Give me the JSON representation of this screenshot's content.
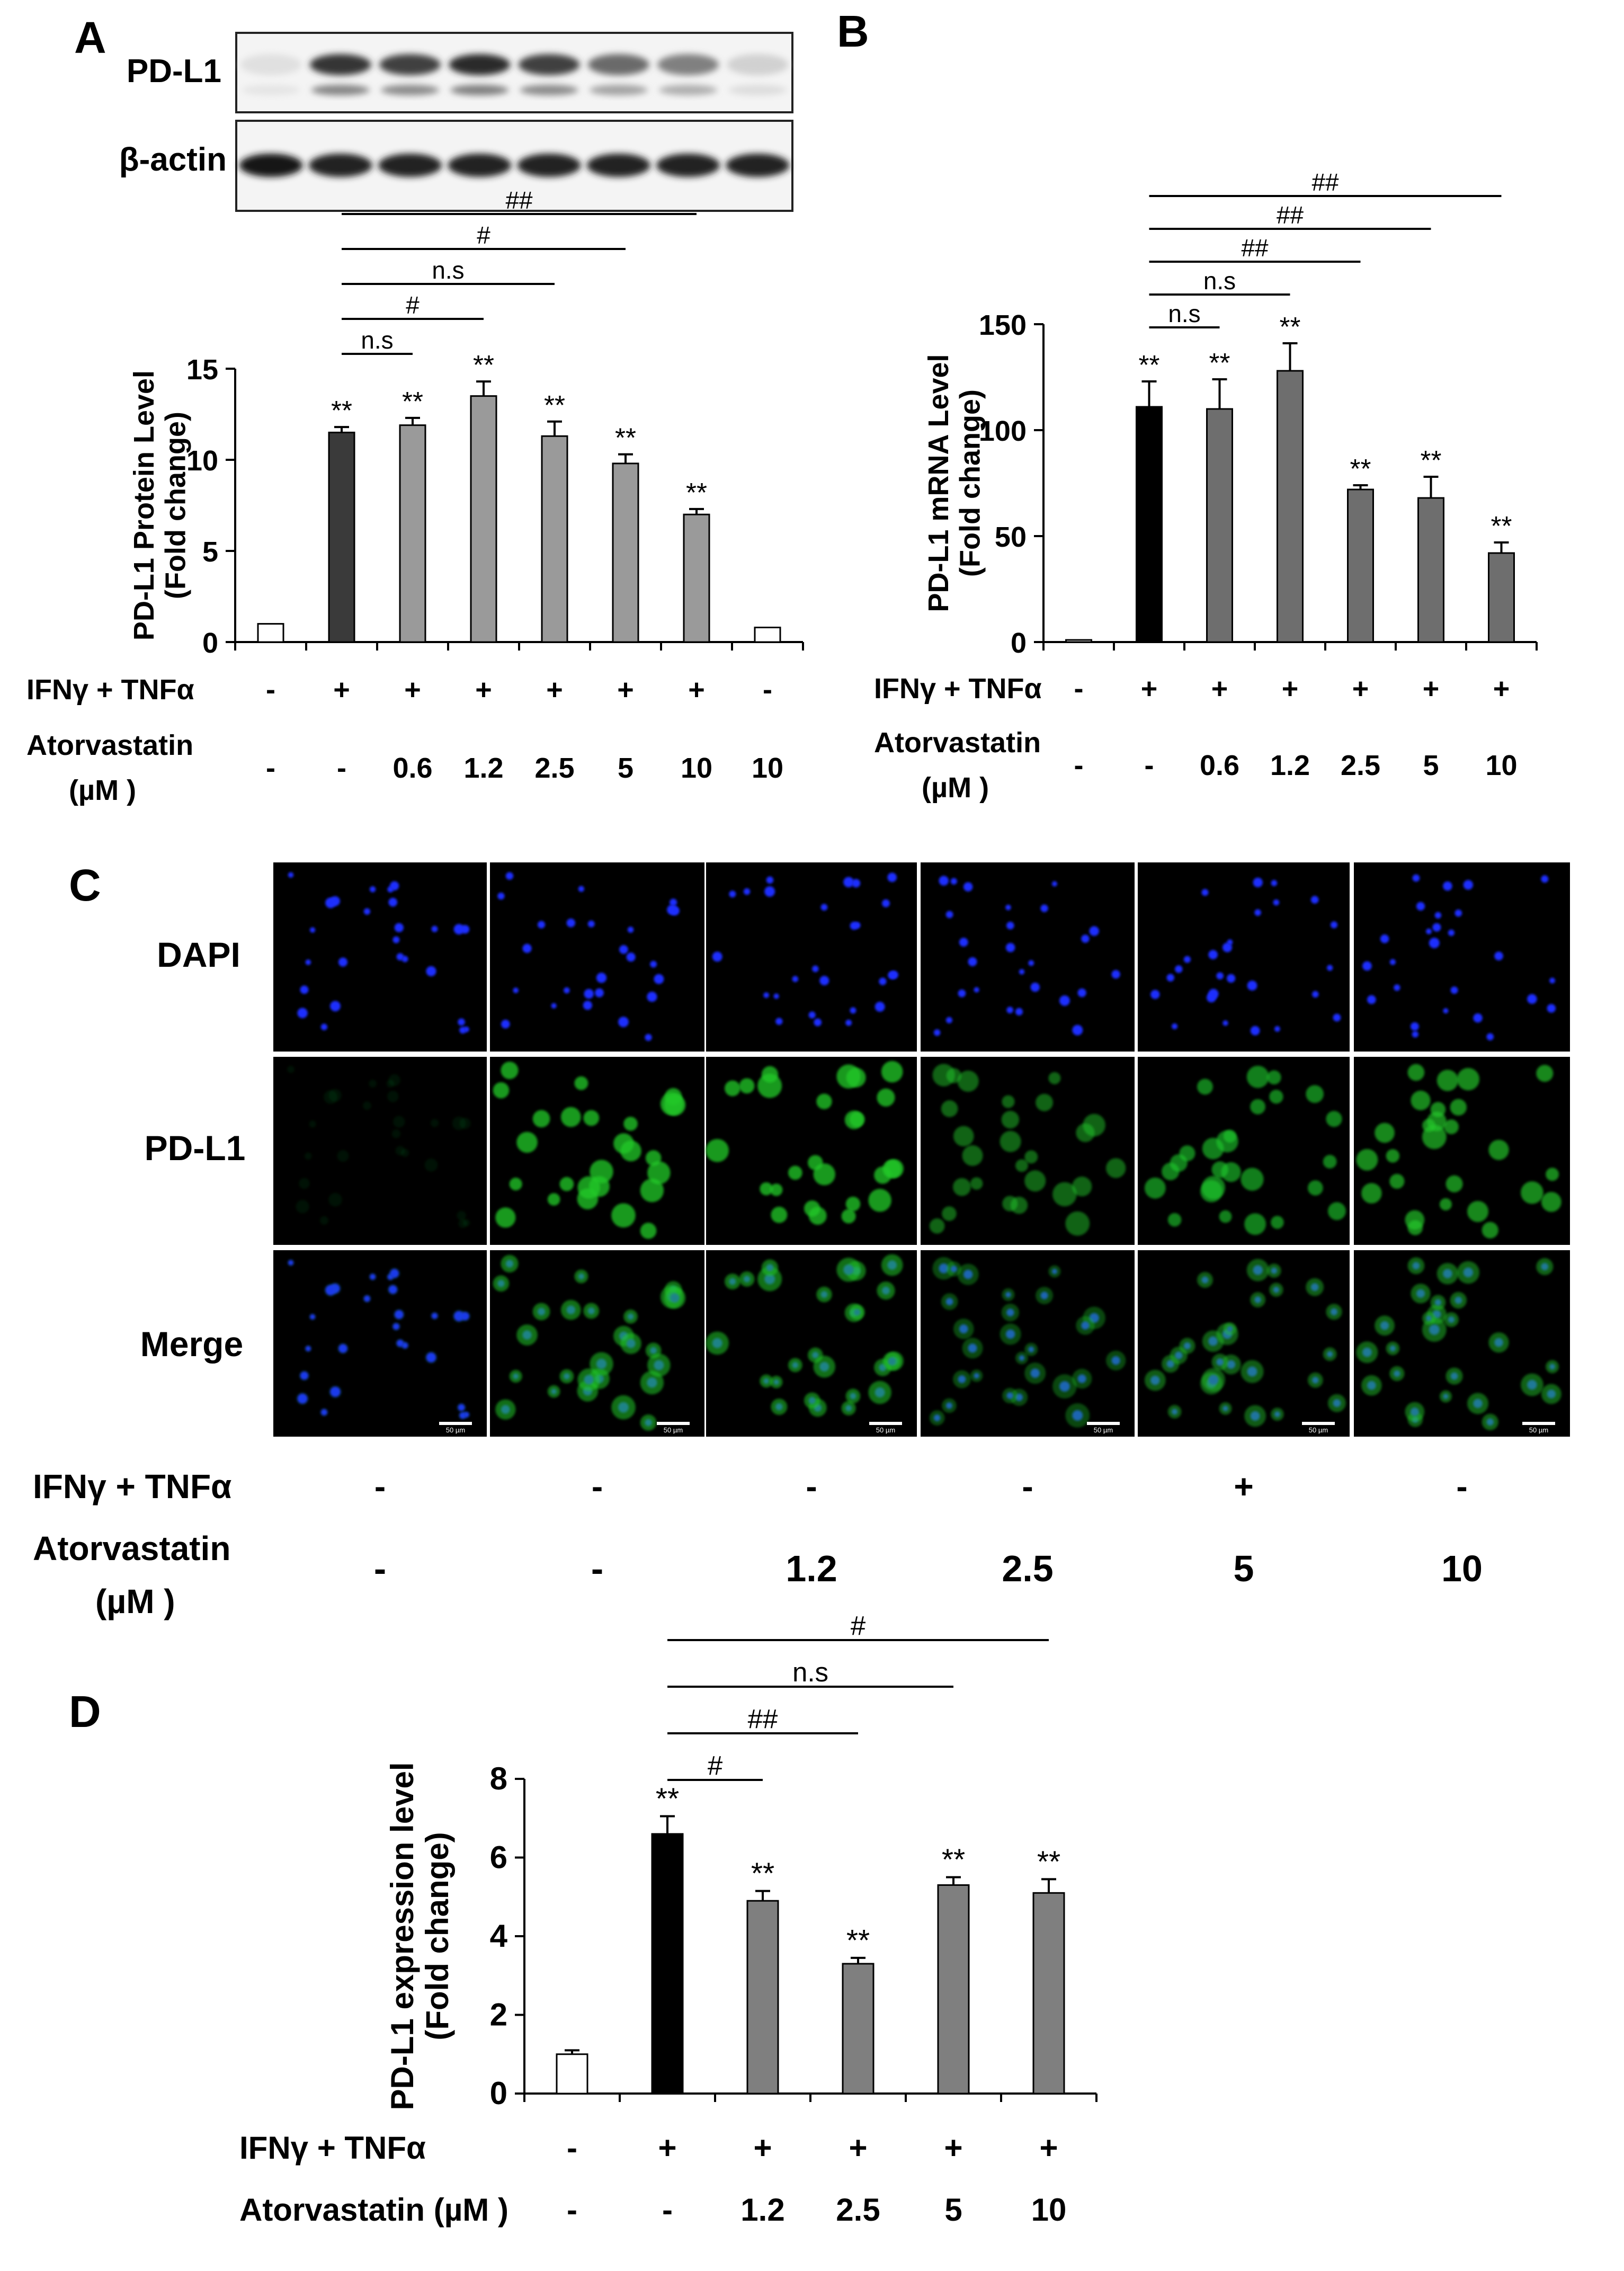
{
  "panels": {
    "A": "A",
    "B": "B",
    "C": "C",
    "D": "D"
  },
  "blot": {
    "labels": [
      "PD-L1",
      "β-actin"
    ],
    "pdl1_band_intensity": [
      0.05,
      0.85,
      0.8,
      0.9,
      0.8,
      0.6,
      0.5,
      0.12
    ],
    "actin_band_intensity": [
      0.95,
      0.9,
      0.9,
      0.9,
      0.9,
      0.9,
      0.9,
      0.9
    ]
  },
  "colors": {
    "white_bar": "#ffffff",
    "dark_bar_A": "#3a3a3a",
    "grey_bar_A": "#9a9a9a",
    "black_bar": "#000000",
    "grey_bar_B": "#6e6e6e",
    "grey_bar_D": "#7f7f7f",
    "dapi": "#1f2fff",
    "pdl1_stain": "#20c82a"
  },
  "microscopy": {
    "rows": [
      "DAPI",
      "PD-L1",
      "Merge"
    ],
    "scale_bar_label": "50 µm",
    "pdl1_intensity": [
      0.1,
      0.85,
      0.85,
      0.55,
      0.7,
      0.75
    ],
    "treatment_labels": [
      "IFNγ + TNFα",
      "Atorvastatin",
      "(µM )"
    ],
    "ifn": [
      "-",
      "-",
      "-",
      "-",
      "+",
      "-"
    ],
    "atorvastatin": [
      "-",
      "-",
      "1.2",
      "2.5",
      "5",
      "10"
    ]
  },
  "chart_data": [
    {
      "type": "bar",
      "panel": "A",
      "title": "",
      "ylabel": [
        "PD-L1 Protein Level",
        "(Fold change)"
      ],
      "ylim": [
        0,
        15
      ],
      "yticks": [
        0,
        5,
        10,
        15
      ],
      "row_labels": [
        "IFNγ + TNFα",
        "Atorvastatin",
        "(µM )"
      ],
      "ifn": [
        "-",
        "+",
        "+",
        "+",
        "+",
        "+",
        "+",
        "-"
      ],
      "atorvastatin": [
        "-",
        "-",
        "0.6",
        "1.2",
        "2.5",
        "5",
        "10",
        "10"
      ],
      "values": [
        1.0,
        11.5,
        11.9,
        13.5,
        11.3,
        9.8,
        7.0,
        0.8
      ],
      "errors": [
        0.0,
        0.3,
        0.4,
        0.8,
        0.8,
        0.5,
        0.3,
        0.0
      ],
      "significance": [
        "",
        "**",
        "**",
        "**",
        "**",
        "**",
        "**",
        ""
      ],
      "comparisons": [
        {
          "label": "n.s",
          "from": 1,
          "to": 2
        },
        {
          "label": "#",
          "from": 1,
          "to": 3
        },
        {
          "label": "n.s",
          "from": 1,
          "to": 4
        },
        {
          "label": "#",
          "from": 1,
          "to": 5
        },
        {
          "label": "##",
          "from": 1,
          "to": 6
        }
      ]
    },
    {
      "type": "bar",
      "panel": "B",
      "title": "",
      "ylabel": [
        "PD-L1 mRNA Level",
        "(Fold change)"
      ],
      "ylim": [
        0,
        150
      ],
      "yticks": [
        0,
        50,
        100,
        150
      ],
      "row_labels": [
        "IFNγ + TNFα",
        "Atorvastatin",
        "(µM )"
      ],
      "ifn": [
        "-",
        "+",
        "+",
        "+",
        "+",
        "+",
        "+"
      ],
      "atorvastatin": [
        "-",
        "-",
        "0.6",
        "1.2",
        "2.5",
        "5",
        "10"
      ],
      "values": [
        1.0,
        111,
        110,
        128,
        72,
        68,
        42
      ],
      "errors": [
        0.0,
        12,
        14,
        13,
        2,
        10,
        5
      ],
      "significance": [
        "",
        "**",
        "**",
        "**",
        "**",
        "**",
        "**"
      ],
      "comparisons": [
        {
          "label": "n.s",
          "from": 1,
          "to": 2
        },
        {
          "label": "n.s",
          "from": 1,
          "to": 3
        },
        {
          "label": "##",
          "from": 1,
          "to": 4
        },
        {
          "label": "##",
          "from": 1,
          "to": 5
        },
        {
          "label": "##",
          "from": 1,
          "to": 6
        }
      ]
    },
    {
      "type": "bar",
      "panel": "D",
      "title": "",
      "ylabel": [
        "PD-L1 expression level",
        "(Fold change)"
      ],
      "ylim": [
        0,
        8
      ],
      "yticks": [
        0,
        2,
        4,
        6,
        8
      ],
      "row_labels": [
        "IFNγ + TNFα",
        "Atorvastatin (µM )"
      ],
      "ifn": [
        "-",
        "+",
        "+",
        "+",
        "+",
        "+"
      ],
      "atorvastatin": [
        "-",
        "-",
        "1.2",
        "2.5",
        "5",
        "10"
      ],
      "values": [
        1.0,
        6.6,
        4.9,
        3.3,
        5.3,
        5.1
      ],
      "errors": [
        0.1,
        0.45,
        0.25,
        0.15,
        0.2,
        0.35
      ],
      "significance": [
        "",
        "**",
        "**",
        "**",
        "**",
        "**"
      ],
      "comparisons": [
        {
          "label": "#",
          "from": 1,
          "to": 2
        },
        {
          "label": "##",
          "from": 1,
          "to": 3
        },
        {
          "label": "n.s",
          "from": 1,
          "to": 4
        },
        {
          "label": "#",
          "from": 1,
          "to": 5
        }
      ]
    }
  ]
}
